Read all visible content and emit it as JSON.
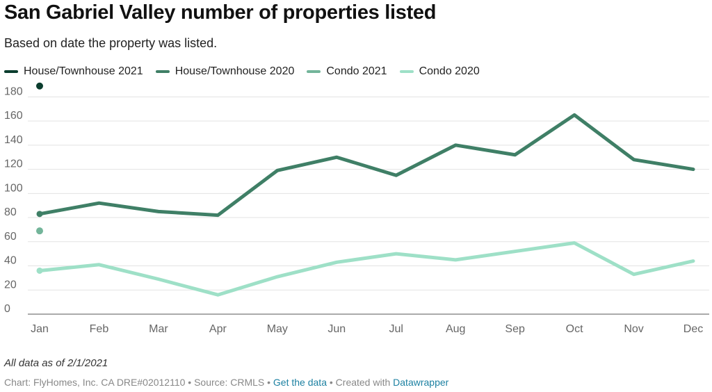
{
  "header": {
    "title": "San Gabriel Valley number of properties listed",
    "subtitle": "Based on date the property was listed."
  },
  "legend": [
    {
      "label": "House/Townhouse 2021",
      "color": "#0b3d2e"
    },
    {
      "label": "House/Townhouse 2020",
      "color": "#3f7f66"
    },
    {
      "label": "Condo 2021",
      "color": "#73b59a"
    },
    {
      "label": "Condo 2020",
      "color": "#9ee0c7"
    }
  ],
  "footer": {
    "note": "All data as of 2/1/2021",
    "credit": "Chart: FlyHomes, Inc. CA DRE#02012110 • Source: CRMLS •",
    "get_data_link": "Get the data",
    "created_with": "• Created with",
    "datawrapper_link": "Datawrapper"
  },
  "chart_data": {
    "type": "line",
    "categories": [
      "Jan",
      "Feb",
      "Mar",
      "Apr",
      "May",
      "Jun",
      "Jul",
      "Aug",
      "Sep",
      "Oct",
      "Nov",
      "Dec"
    ],
    "ylim": [
      0,
      180
    ],
    "yticks": [
      0,
      20,
      40,
      60,
      80,
      100,
      120,
      140,
      160,
      180
    ],
    "grid": true,
    "legend_position": "top-left",
    "series": [
      {
        "name": "House/Townhouse 2021",
        "color": "#0b3d2e",
        "values": [
          189,
          null,
          null,
          null,
          null,
          null,
          null,
          null,
          null,
          null,
          null,
          null
        ]
      },
      {
        "name": "House/Townhouse 2020",
        "color": "#3f7f66",
        "values": [
          83,
          92,
          85,
          82,
          119,
          130,
          115,
          140,
          132,
          165,
          128,
          120
        ]
      },
      {
        "name": "Condo 2021",
        "color": "#73b59a",
        "values": [
          69,
          null,
          null,
          null,
          null,
          null,
          null,
          null,
          null,
          null,
          null,
          null
        ]
      },
      {
        "name": "Condo 2020",
        "color": "#9ee0c7",
        "values": [
          36,
          41,
          29,
          16,
          31,
          43,
          50,
          45,
          52,
          59,
          33,
          44
        ]
      }
    ]
  }
}
